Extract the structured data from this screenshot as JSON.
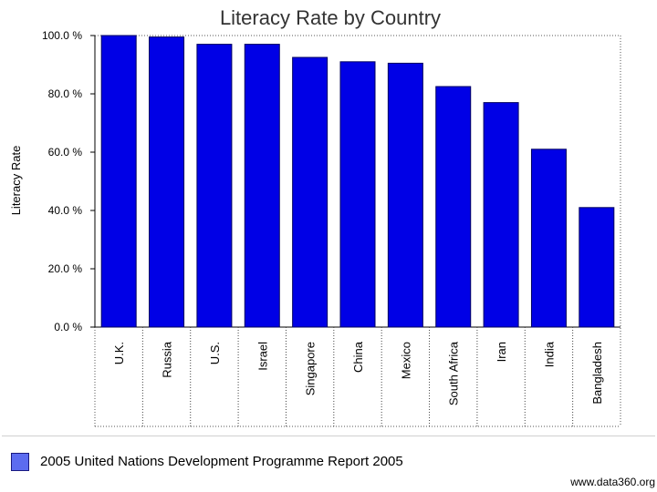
{
  "chart_data": {
    "type": "bar",
    "title": "Literacy Rate by Country",
    "xlabel": "",
    "ylabel": "Literacy Rate",
    "categories": [
      "U.K.",
      "Russia",
      "U.S.",
      "Israel",
      "Singapore",
      "China",
      "Mexico",
      "South Africa",
      "Iran",
      "India",
      "Bangladesh"
    ],
    "series": [
      {
        "name": "2005 United Nations Development Programme Report 2005",
        "values": [
          100.0,
          99.5,
          97.0,
          97.0,
          92.5,
          91.0,
          90.5,
          82.5,
          77.0,
          61.0,
          41.0
        ],
        "color": "#0000e6"
      }
    ],
    "ylim": [
      0,
      100
    ],
    "yticks": [
      0,
      20,
      40,
      60,
      80,
      100
    ],
    "ytick_labels": [
      "0.0 %",
      "20.0 %",
      "40.0 %",
      "60.0 %",
      "80.0 %",
      "100.0 %"
    ],
    "grid": false,
    "legend_position": "bottom-left"
  },
  "legend": {
    "label": "2005 United Nations Development Programme Report 2005",
    "swatch_color": "#5c6cf0"
  },
  "credit": "www.data360.org",
  "colors": {
    "bar_fill": "#0000e6",
    "bar_edge": "#000060",
    "axis": "#000000",
    "divider": "#444444"
  }
}
